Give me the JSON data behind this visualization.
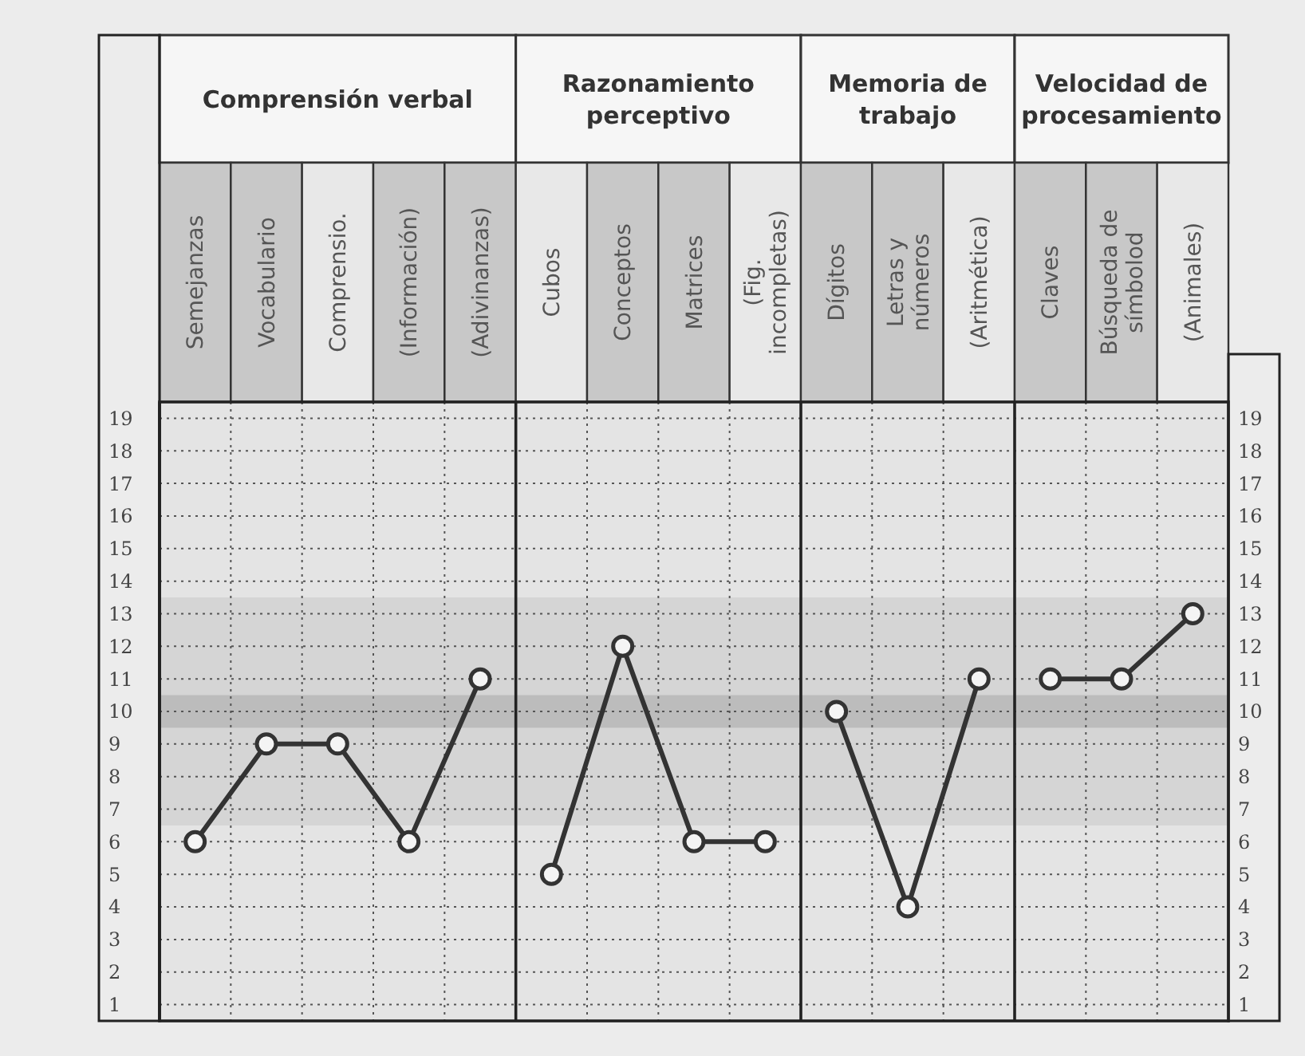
{
  "chart_data": {
    "type": "line",
    "categories": [
      "Semejanzas",
      "Vocabulario",
      "Comprensio.",
      "(Información)",
      "(Adivinanzas)",
      "Cubos",
      "Conceptos",
      "Matrices",
      "(Fig.\nincompletas)",
      "Dígitos",
      "Letras y\nnúmeros",
      "(Aritmética)",
      "Claves",
      "Búsqueda de\nsímbolod",
      "(Animales)"
    ],
    "series": [
      {
        "color": "#333333",
        "values": [
          6,
          9,
          9,
          6,
          11,
          null,
          null,
          null,
          null,
          null,
          null,
          null,
          null,
          null,
          null
        ]
      },
      {
        "color": "#333333",
        "values": [
          null,
          null,
          null,
          null,
          null,
          5,
          12,
          6,
          6,
          null,
          null,
          null,
          null,
          null,
          null
        ]
      },
      {
        "color": "#333333",
        "values": [
          null,
          null,
          null,
          null,
          null,
          null,
          null,
          null,
          null,
          10,
          4,
          11,
          null,
          null,
          null
        ]
      },
      {
        "color": "#333333",
        "values": [
          null,
          null,
          null,
          null,
          null,
          null,
          null,
          null,
          null,
          null,
          null,
          null,
          11,
          11,
          13
        ]
      }
    ],
    "annotations": [
      "Comprensión verbal",
      "Razonamiento\nperceptivo",
      "Memoria de\ntrabajo",
      "Velocidad de\nprocesamiento"
    ],
    "ylim": [
      0.5,
      19.5
    ],
    "yticks": [
      1,
      2,
      3,
      4,
      5,
      6,
      7,
      8,
      9,
      10,
      11,
      12,
      13,
      14,
      15,
      16,
      17,
      18,
      19
    ],
    "y2lim": [
      0.5,
      19.5
    ],
    "y2ticks": [
      1,
      2,
      3,
      4,
      5,
      6,
      7,
      8,
      9,
      10,
      11,
      12,
      13,
      14,
      15,
      16,
      17,
      18,
      19
    ],
    "bands": [
      {
        "axis": "y",
        "from": 6.5,
        "to": 13.5,
        "color": "#cfcfcf"
      },
      {
        "axis": "y",
        "from": 9.5,
        "to": 10.5,
        "color": "#b0b0b0"
      }
    ],
    "grid": true,
    "marker": "circle",
    "line_style": "solid"
  }
}
